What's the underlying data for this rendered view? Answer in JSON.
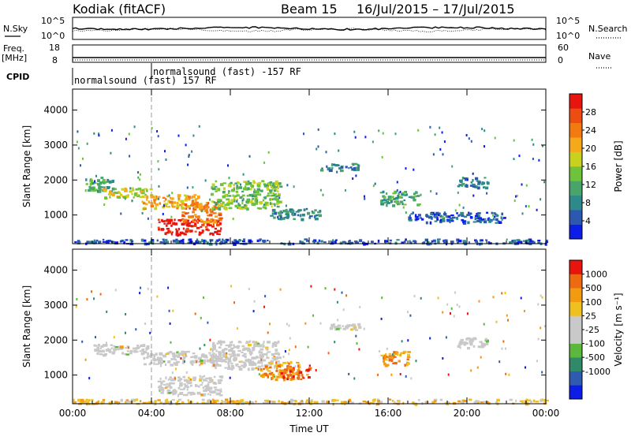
{
  "header": {
    "station": "Kodiak (fitACF)",
    "beam": "Beam 15",
    "date_range": "16/Jul/2015 – 17/Jul/2015"
  },
  "status_panels": {
    "nsky_label": "N.Sky",
    "nsky_top": "10^5",
    "nsky_bottom": "10^0",
    "nsearch_label": "N.Search",
    "nsearch_top": "10^5",
    "nsearch_bottom": "10^0",
    "freq_label": "Freq.",
    "freq_unit": "[MHz]",
    "freq_top": "18",
    "freq_bottom": "8",
    "nave_label": "Nave",
    "nave_top": "60",
    "nave_bottom": "0",
    "cpid_label": "CPID",
    "cpid_mode_1": "normalsound (fast) 157 RF",
    "cpid_mode_2": "normalsound (fast) -157 RF"
  },
  "chart_data": [
    {
      "type": "heatmap",
      "panel": "power",
      "ylabel": "Slant Range [km]",
      "xlabel": "",
      "ylim": [
        180,
        4600
      ],
      "xlim_hours": [
        0,
        24
      ],
      "x_ticks": [
        "00:00",
        "04:00",
        "08:00",
        "12:00",
        "16:00",
        "20:00",
        "00:00"
      ],
      "y_ticks": [
        1000,
        2000,
        3000,
        4000
      ],
      "colorbar": {
        "label": "Power [dB]",
        "ticks": [
          "4",
          "8",
          "12",
          "16",
          "20",
          "24",
          "28"
        ],
        "colors": [
          "#0c1de8",
          "#2d58b0",
          "#2e8a8a",
          "#49a46b",
          "#6fc33a",
          "#c8d21e",
          "#f4a81a",
          "#f27a10",
          "#ee4d12",
          "#e8150e"
        ]
      },
      "echo_regions": [
        {
          "t0": 0.5,
          "t1": 2.0,
          "r0": 1700,
          "r1": 2100,
          "level": 3
        },
        {
          "t0": 1.5,
          "t1": 4.0,
          "r0": 1500,
          "r1": 1800,
          "level": 5
        },
        {
          "t0": 3.5,
          "t1": 6.5,
          "r0": 1200,
          "r1": 1600,
          "level": 6
        },
        {
          "t0": 4.3,
          "t1": 7.5,
          "r0": 450,
          "r1": 900,
          "level": 9
        },
        {
          "t0": 5.5,
          "t1": 7.5,
          "r0": 800,
          "r1": 1400,
          "level": 7
        },
        {
          "t0": 7.0,
          "t1": 10.5,
          "r0": 1200,
          "r1": 2000,
          "level": 4
        },
        {
          "t0": 10.0,
          "t1": 12.5,
          "r0": 900,
          "r1": 1200,
          "level": 2
        },
        {
          "t0": 12.5,
          "t1": 14.5,
          "r0": 2300,
          "r1": 2500,
          "level": 2
        },
        {
          "t0": 15.5,
          "t1": 17.5,
          "r0": 1300,
          "r1": 1700,
          "level": 3
        },
        {
          "t0": 17.0,
          "t1": 22.0,
          "r0": 800,
          "r1": 1100,
          "level": 1
        },
        {
          "t0": 19.5,
          "t1": 21.0,
          "r0": 1800,
          "r1": 2100,
          "level": 2
        },
        {
          "t0": 0.0,
          "t1": 24.0,
          "r0": 200,
          "r1": 330,
          "level": 1
        }
      ]
    },
    {
      "type": "heatmap",
      "panel": "velocity",
      "ylabel": "Slant Range [km]",
      "xlabel": "Time UT",
      "ylim": [
        180,
        4600
      ],
      "xlim_hours": [
        0,
        24
      ],
      "x_ticks": [
        "00:00",
        "04:00",
        "08:00",
        "12:00",
        "16:00",
        "20:00",
        "00:00"
      ],
      "y_ticks": [
        1000,
        2000,
        3000,
        4000
      ],
      "colorbar": {
        "label": "Velocity [m s⁻¹]",
        "ticks": [
          "1000",
          "500",
          "100",
          "25",
          "-25",
          "-100",
          "-500",
          "-1000"
        ],
        "colors": [
          "#0c1de8",
          "#2e5ab0",
          "#2f8a6a",
          "#5cb83c",
          "#c9c9c9",
          "#c9c9c9",
          "#f0c020",
          "#f29a10",
          "#ee6a10",
          "#e8150e"
        ]
      },
      "echo_regions": [
        {
          "t0": 1.0,
          "t1": 4.0,
          "r0": 1600,
          "r1": 1900,
          "level": 4
        },
        {
          "t0": 3.5,
          "t1": 7.5,
          "r0": 1300,
          "r1": 1700,
          "level": 4
        },
        {
          "t0": 4.3,
          "t1": 7.5,
          "r0": 450,
          "r1": 1000,
          "level": 4
        },
        {
          "t0": 7.0,
          "t1": 10.5,
          "r0": 1200,
          "r1": 2000,
          "level": 4
        },
        {
          "t0": 9.5,
          "t1": 11.5,
          "r0": 900,
          "r1": 1400,
          "level": 7
        },
        {
          "t0": 10.5,
          "t1": 12.0,
          "r0": 900,
          "r1": 1300,
          "level": 8
        },
        {
          "t0": 13.0,
          "t1": 14.5,
          "r0": 2300,
          "r1": 2500,
          "level": 4
        },
        {
          "t0": 15.5,
          "t1": 17.0,
          "r0": 1300,
          "r1": 1700,
          "level": 7
        },
        {
          "t0": 19.5,
          "t1": 21.0,
          "r0": 1800,
          "r1": 2100,
          "level": 4
        },
        {
          "t0": 0.0,
          "t1": 24.0,
          "r0": 200,
          "r1": 330,
          "level": 6
        }
      ]
    }
  ]
}
